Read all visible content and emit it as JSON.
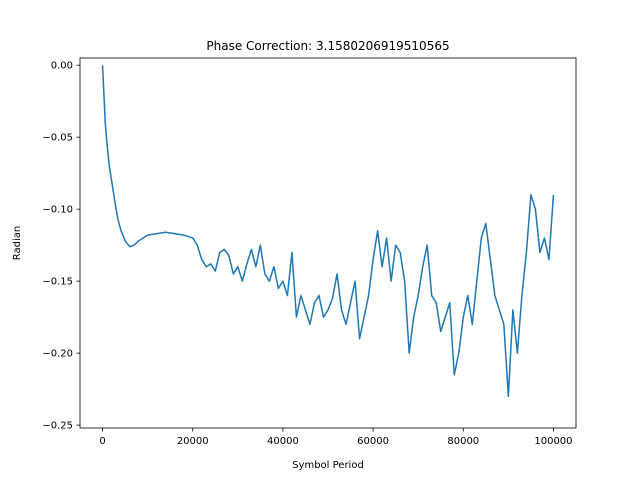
{
  "chart_data": {
    "type": "line",
    "title": "Phase Correction: 3.1580206919510565",
    "xlabel": "Symbol Period",
    "ylabel": "Radian",
    "xlim": [
      -5000,
      105000
    ],
    "ylim": [
      -0.252,
      0.005
    ],
    "xticks": [
      0,
      20000,
      40000,
      60000,
      80000,
      100000
    ],
    "xtick_labels": [
      "0",
      "20000",
      "40000",
      "60000",
      "80000",
      "100000"
    ],
    "yticks": [
      0.0,
      -0.05,
      -0.1,
      -0.15,
      -0.2,
      -0.25
    ],
    "ytick_labels": [
      "0.00",
      "−0.05",
      "−0.10",
      "−0.15",
      "−0.20",
      "−0.25"
    ],
    "grid": false,
    "series": [
      {
        "color": "#1f77b4",
        "x": [
          0,
          300,
          600,
          1000,
          1500,
          2000,
          2500,
          3000,
          3500,
          4000,
          5000,
          6000,
          7000,
          8000,
          9000,
          10000,
          12000,
          14000,
          16000,
          18000,
          20000,
          21000,
          22000,
          23000,
          24000,
          25000,
          26000,
          27000,
          28000,
          29000,
          30000,
          31000,
          32000,
          33000,
          34000,
          35000,
          36000,
          37000,
          38000,
          39000,
          40000,
          41000,
          42000,
          43000,
          44000,
          45000,
          46000,
          47000,
          48000,
          49000,
          50000,
          51000,
          52000,
          53000,
          54000,
          55000,
          56000,
          57000,
          58000,
          59000,
          60000,
          61000,
          62000,
          63000,
          64000,
          65000,
          66000,
          67000,
          68000,
          69000,
          70000,
          71000,
          72000,
          73000,
          74000,
          75000,
          76000,
          77000,
          78000,
          79000,
          80000,
          81000,
          82000,
          83000,
          84000,
          85000,
          86000,
          87000,
          88000,
          89000,
          90000,
          91000,
          92000,
          93000,
          94000,
          95000,
          96000,
          97000,
          98000,
          99000,
          100000
        ],
        "y": [
          0.0,
          -0.02,
          -0.04,
          -0.055,
          -0.07,
          -0.08,
          -0.09,
          -0.1,
          -0.108,
          -0.114,
          -0.122,
          -0.126,
          -0.125,
          -0.122,
          -0.12,
          -0.118,
          -0.117,
          -0.116,
          -0.117,
          -0.118,
          -0.12,
          -0.125,
          -0.135,
          -0.14,
          -0.138,
          -0.143,
          -0.13,
          -0.128,
          -0.132,
          -0.145,
          -0.14,
          -0.15,
          -0.138,
          -0.128,
          -0.14,
          -0.125,
          -0.145,
          -0.15,
          -0.14,
          -0.155,
          -0.15,
          -0.16,
          -0.13,
          -0.175,
          -0.16,
          -0.17,
          -0.18,
          -0.165,
          -0.16,
          -0.175,
          -0.17,
          -0.162,
          -0.145,
          -0.17,
          -0.18,
          -0.165,
          -0.15,
          -0.19,
          -0.175,
          -0.16,
          -0.135,
          -0.115,
          -0.14,
          -0.12,
          -0.15,
          -0.125,
          -0.13,
          -0.15,
          -0.2,
          -0.175,
          -0.16,
          -0.14,
          -0.125,
          -0.16,
          -0.165,
          -0.185,
          -0.175,
          -0.165,
          -0.215,
          -0.2,
          -0.175,
          -0.16,
          -0.18,
          -0.15,
          -0.12,
          -0.11,
          -0.135,
          -0.16,
          -0.17,
          -0.18,
          -0.23,
          -0.17,
          -0.2,
          -0.16,
          -0.13,
          -0.09,
          -0.1,
          -0.13,
          -0.12,
          -0.135,
          -0.09
        ]
      }
    ]
  }
}
